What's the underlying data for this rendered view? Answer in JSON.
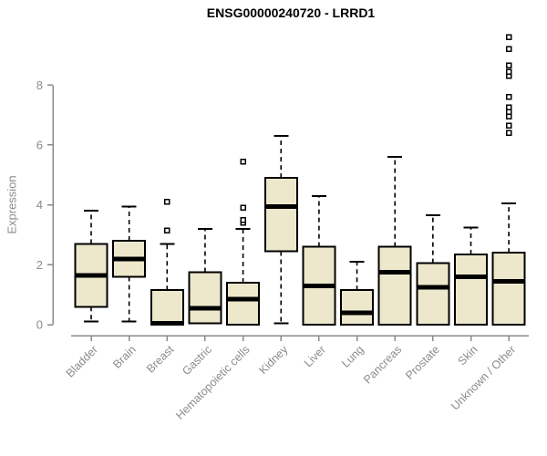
{
  "figure": {
    "background": "#ffffff"
  },
  "chart_data": {
    "type": "boxplot",
    "title": "ENSG00000240720 - LRRD1",
    "ylabel": "Expression",
    "xlabel": "",
    "ylim": [
      0,
      9.8
    ],
    "yticks": [
      0,
      2,
      4,
      6,
      8
    ],
    "grid": false,
    "legend": "none",
    "categories": [
      "Bladder",
      "Brain",
      "Breast",
      "Gastric",
      "Hematopoietic cells",
      "Kidney",
      "Liver",
      "Lung",
      "Pancreas",
      "Prostate",
      "Skin",
      "Unknown / Other"
    ],
    "boxes": [
      {
        "category": "Bladder",
        "low": 0.1,
        "q1": 0.6,
        "median": 1.65,
        "q3": 2.7,
        "high": 3.8,
        "outliers": []
      },
      {
        "category": "Brain",
        "low": 0.1,
        "q1": 1.6,
        "median": 2.2,
        "q3": 2.8,
        "high": 3.95,
        "outliers": []
      },
      {
        "category": "Breast",
        "low": 0.0,
        "q1": 0.0,
        "median": 0.05,
        "q3": 1.15,
        "high": 2.7,
        "outliers": [
          3.15,
          4.1
        ]
      },
      {
        "category": "Gastric",
        "low": 0.05,
        "q1": 0.05,
        "median": 0.55,
        "q3": 1.75,
        "high": 3.2,
        "outliers": []
      },
      {
        "category": "Hematopoietic cells",
        "low": 0.0,
        "q1": 0.0,
        "median": 0.85,
        "q3": 1.4,
        "high": 3.2,
        "outliers": [
          3.4,
          3.5,
          3.9,
          5.45
        ]
      },
      {
        "category": "Kidney",
        "low": 0.05,
        "q1": 2.45,
        "median": 3.95,
        "q3": 4.9,
        "high": 6.3,
        "outliers": []
      },
      {
        "category": "Liver",
        "low": 0.0,
        "q1": 0.0,
        "median": 1.3,
        "q3": 2.6,
        "high": 4.3,
        "outliers": []
      },
      {
        "category": "Lung",
        "low": 0.0,
        "q1": 0.0,
        "median": 0.4,
        "q3": 1.15,
        "high": 2.1,
        "outliers": []
      },
      {
        "category": "Pancreas",
        "low": 0.0,
        "q1": 0.0,
        "median": 1.75,
        "q3": 2.6,
        "high": 5.6,
        "outliers": []
      },
      {
        "category": "Prostate",
        "low": 0.0,
        "q1": 0.0,
        "median": 1.25,
        "q3": 2.05,
        "high": 3.65,
        "outliers": []
      },
      {
        "category": "Skin",
        "low": 0.0,
        "q1": 0.0,
        "median": 1.6,
        "q3": 2.35,
        "high": 3.25,
        "outliers": []
      },
      {
        "category": "Unknown / Other",
        "low": 0.0,
        "q1": 0.0,
        "median": 1.45,
        "q3": 2.4,
        "high": 4.05,
        "outliers": [
          6.4,
          6.65,
          6.95,
          7.1,
          7.25,
          7.6,
          8.3,
          8.45,
          8.65,
          9.2,
          9.6
        ]
      }
    ],
    "colors": {
      "box_fill": "#EDE7CB",
      "box_stroke": "#000000",
      "median": "#000000",
      "whisker": "#000000",
      "outlier_stroke": "#000000",
      "axis": "#8B8B8B",
      "title": "#000000"
    }
  }
}
